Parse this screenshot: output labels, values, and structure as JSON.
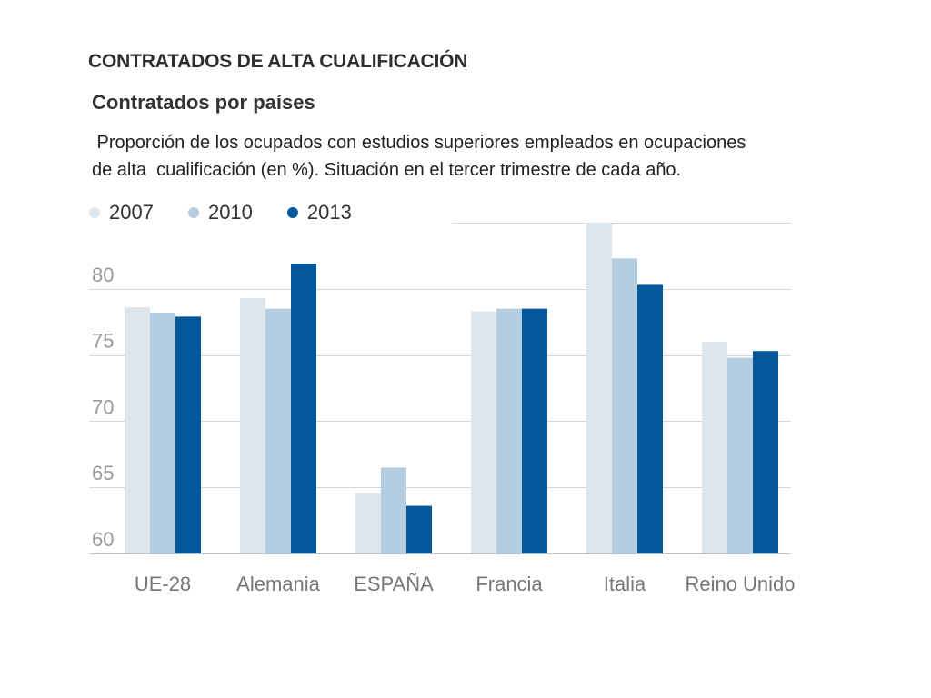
{
  "chart_data": {
    "type": "bar",
    "title": "CONTRATADOS DE ALTA CUALIFICACIÓN",
    "subtitle": "Contratados por países",
    "description_lines": [
      " Proporción de los ocupados con estudios superiores empleados en ocupaciones",
      "de alta  cualificación (en %). Situación en el tercer trimestre de cada año."
    ],
    "xlabel": "",
    "ylabel": "",
    "ylim": [
      60,
      85
    ],
    "yticks": [
      60,
      65,
      70,
      75,
      80
    ],
    "ytick_labels": [
      "60",
      "65",
      "70",
      "75",
      "80"
    ],
    "grid": true,
    "legend_position": "top-left",
    "categories": [
      "UE-28",
      "Alemania",
      "ESPAÑA",
      "Francia",
      "Italia",
      "Reino Unido"
    ],
    "series": [
      {
        "name": "2007",
        "color": "#dfe6eb",
        "values": [
          78.6,
          79.3,
          64.6,
          78.3,
          85.0,
          76.0
        ]
      },
      {
        "name": "2010",
        "color": "#b5cde0",
        "values": [
          78.2,
          78.5,
          66.5,
          78.5,
          82.3,
          74.8
        ]
      },
      {
        "name": "2013",
        "color": "#02589b",
        "values": [
          77.9,
          81.9,
          63.6,
          78.5,
          80.3,
          75.3
        ]
      }
    ]
  }
}
